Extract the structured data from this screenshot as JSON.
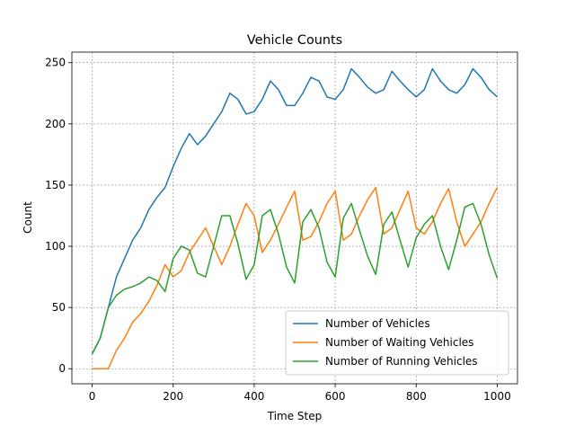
{
  "chart_data": {
    "type": "line",
    "title": "Vehicle Counts",
    "x_label": "Time Step",
    "y_label": "Count",
    "x": [
      0,
      20,
      40,
      60,
      80,
      100,
      120,
      140,
      160,
      180,
      200,
      220,
      240,
      260,
      280,
      300,
      320,
      340,
      360,
      380,
      400,
      420,
      440,
      460,
      480,
      500,
      520,
      540,
      560,
      580,
      600,
      620,
      640,
      660,
      680,
      700,
      720,
      740,
      760,
      780,
      800,
      820,
      840,
      860,
      880,
      900,
      920,
      940,
      960,
      980,
      1000
    ],
    "series": [
      {
        "name": "Number of Vehicles",
        "color": "#1f77b4",
        "values": [
          12,
          25,
          50,
          75,
          90,
          105,
          115,
          130,
          140,
          148,
          165,
          180,
          192,
          183,
          190,
          200,
          210,
          225,
          220,
          208,
          210,
          220,
          235,
          228,
          215,
          215,
          225,
          238,
          235,
          222,
          220,
          228,
          245,
          238,
          230,
          225,
          228,
          243,
          235,
          228,
          222,
          228,
          245,
          235,
          228,
          225,
          232,
          245,
          238,
          228,
          222
        ]
      },
      {
        "name": "Number of Waiting Vehicles",
        "color": "#ff7f0e",
        "values": [
          0,
          0,
          0,
          15,
          25,
          38,
          45,
          55,
          68,
          85,
          75,
          80,
          95,
          105,
          115,
          100,
          85,
          100,
          118,
          135,
          125,
          95,
          105,
          118,
          132,
          145,
          105,
          108,
          120,
          135,
          145,
          105,
          110,
          125,
          138,
          148,
          110,
          115,
          130,
          145,
          115,
          110,
          120,
          135,
          147,
          120,
          100,
          110,
          120,
          135,
          148
        ]
      },
      {
        "name": "Number of Running Vehicles",
        "color": "#2ca02c",
        "values": [
          12,
          25,
          50,
          60,
          65,
          67,
          70,
          75,
          72,
          63,
          90,
          100,
          97,
          78,
          75,
          100,
          125,
          125,
          102,
          73,
          85,
          125,
          130,
          110,
          83,
          70,
          120,
          130,
          115,
          87,
          75,
          123,
          135,
          113,
          92,
          77,
          118,
          128,
          105,
          83,
          107,
          118,
          125,
          100,
          81,
          105,
          132,
          135,
          118,
          93,
          74
        ]
      }
    ],
    "xlim": [
      -50,
      1050
    ],
    "ylim": [
      -12.3,
      258.6
    ],
    "xticks": [
      0,
      200,
      400,
      600,
      800,
      1000
    ],
    "yticks": [
      0,
      50,
      100,
      150,
      200,
      250
    ],
    "grid": true,
    "legend": "lower right"
  }
}
